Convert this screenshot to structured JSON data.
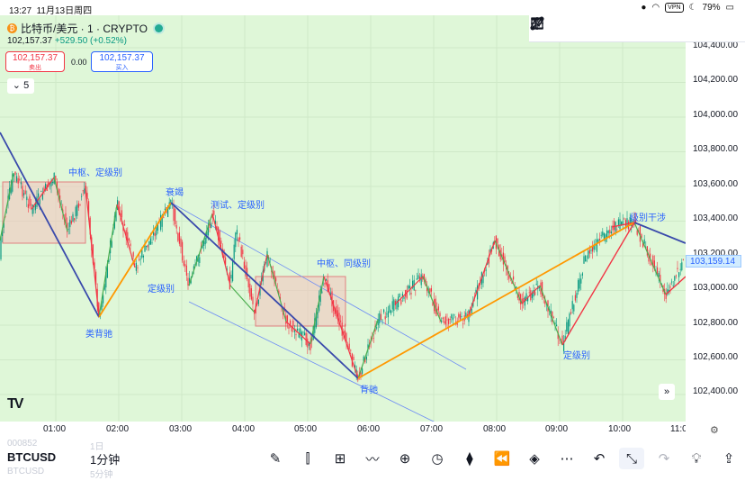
{
  "status_bar": {
    "time": "13:27",
    "date": "11月13日周四",
    "vpn": "VPN",
    "battery": "79%"
  },
  "header": {
    "symbol_title": "比特币/美元 · 1 · CRYPTO",
    "last_price": "102,157.37",
    "change": "+529.50 (+0.52%)",
    "sell_price": "102,157.37",
    "sell_label": "卖出",
    "spread": "0.00",
    "buy_price": "102,157.37",
    "buy_label": "买入",
    "interval_toggle": "5"
  },
  "price_axis": {
    "ticks": [
      "104,400.00",
      "104,200.00",
      "104,000.00",
      "103,800.00",
      "103,600.00",
      "103,400.00",
      "103,200.00",
      "103,000.00",
      "102,800.00",
      "102,600.00",
      "102,400.00"
    ],
    "current_price": "103,159.14"
  },
  "time_axis": {
    "ticks": [
      "01:00",
      "02:00",
      "03:00",
      "04:00",
      "05:00",
      "06:00",
      "07:00",
      "08:00",
      "09:00",
      "10:00",
      "11:0"
    ]
  },
  "annotations": {
    "zs1": "中枢、定级别",
    "shuairuo": "衰竭",
    "ceshi": "测试、定级别",
    "leibeichi": "类背驰",
    "dingjibie1": "定级别",
    "zs2": "中枢、同级别",
    "beichi": "背驰",
    "dingjibie2": "定级别",
    "jibieganshe": "级别干涉"
  },
  "bottom_bar": {
    "ghost_symbol": "000852",
    "ghost_interval": "1日",
    "symbol": "BTCUSD",
    "interval": "1分钟",
    "ghost_symbol2": "BTCUSD",
    "ghost_interval2": "5分钟"
  },
  "colors": {
    "background": "#dff7d8",
    "up": "#089981",
    "down": "#f23645",
    "accent": "#2962ff",
    "orange": "#ff9800"
  }
}
